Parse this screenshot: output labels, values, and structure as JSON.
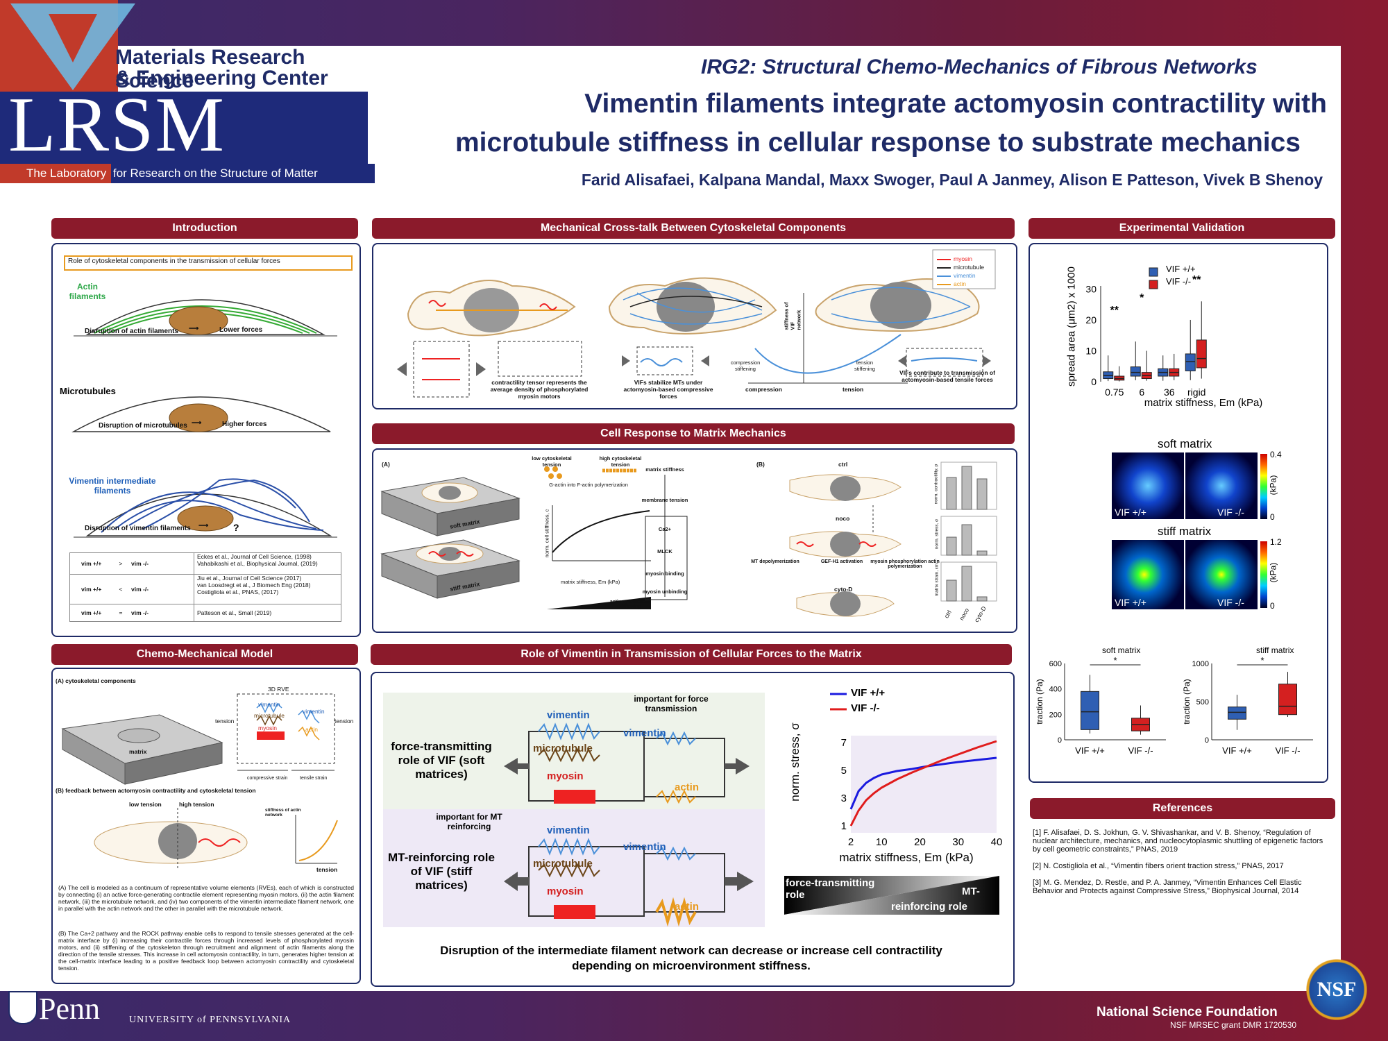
{
  "header": {
    "mrsec_line1": "Materials Research Science",
    "mrsec_line2": "& Engineering Center",
    "lrsm": "LRSM",
    "lrsm_sub_a": "The Laboratory",
    "lrsm_sub_b": "for Research on the Structure of Matter",
    "irg": "IRG2: Structural Chemo-Mechanics of Fibrous Networks",
    "title_line1": "Vimentin filaments integrate actomyosin contractility with",
    "title_line2": "microtubule stiffness in cellular response to substrate mechanics",
    "authors": "Farid Alisafaei, Kalpana Mandal, Maxx Swoger, Paul A Janmey, Alison E Patteson, Vivek B Shenoy",
    "vertical_text": "The Laboratory for Research on the Structure of Matter"
  },
  "intro": {
    "header": "Introduction",
    "role_box": "Role of cytoskeletal components in the transmission of cellular forces",
    "actin_label": "Actin filaments",
    "actin_disrupt": "Disruption of actin filaments",
    "actin_result": "Lower forces",
    "mt_label": "Microtubules",
    "mt_disrupt": "Disruption of microtubules",
    "mt_result": "Higher forces",
    "vim_label": "Vimentin intermediate filaments",
    "vim_disrupt": "Disruption of vimentin filaments",
    "vim_result": "?",
    "table": [
      {
        "left": "vim +/+",
        "op": ">",
        "right": "vim -/-",
        "refs": [
          "Eckes et al., Journal of Cell Science, (1998)",
          "Vahabikashi et al., Biophysical Journal, (2019)"
        ]
      },
      {
        "left": "vim +/+",
        "op": "<",
        "right": "vim -/-",
        "refs": [
          "Jiu et al., Journal of Cell Science (2017)",
          "van Loosdregt et al., J Biomech Eng (2018)",
          "Costigliola et al., PNAS, (2017)"
        ]
      },
      {
        "left": "vim +/+",
        "op": "=",
        "right": "vim -/-",
        "refs": [
          "Patteson et al., Small (2019)"
        ]
      }
    ]
  },
  "model": {
    "header": "Chemo-Mechanical Model",
    "a_label": "(A) cytoskeletal components",
    "rve": "3D RVE",
    "matrix": "matrix",
    "tension": "tension",
    "vimentin": "vimentin",
    "microtubule": "microtubule",
    "myosin": "myosin",
    "actin": "actin",
    "compressive": "compressive strain",
    "tensile": "tensile strain",
    "b_label": "(B) feedback between actomyosin contractility and cytoskeletal tension",
    "low_tension": "low tension",
    "high_tension": "high tension",
    "stiff_axis": "stiffness of actin network",
    "para_a": "(A) The cell is modeled as a continuum of representative volume elements (RVEs), each of which is constructed by connecting (i) an active force-generating contractile element representing myosin motors, (ii) the actin filament network, (iii) the microtubule network, and (iv) two components of the vimentin intermediate filament network, one in parallel with the actin network and the other in parallel with the microtubule network.",
    "para_b": "(B) The Ca+2 pathway and the ROCK pathway enable cells to respond to tensile stresses generated at the cell-matrix interface by (i) increasing their contractile forces through increased levels of phosphorylated myosin motors, and (ii) stiffening of the cytoskeleton through recruitment and alignment of actin filaments along the direction of the tensile stresses. This increase in cell actomyosin contractility, in turn, generates higher tension at the cell-matrix interface leading to a positive feedback loop between actomyosin contractility and cytoskeletal tension."
  },
  "crosstalk": {
    "header": "Mechanical Cross-talk Between Cytoskeletal Components",
    "legend": [
      "myosin",
      "microtubule",
      "vimentin",
      "actin"
    ],
    "contractility": "contractility tensor represents the average density of phosphorylated myosin motors",
    "vif_stabilize": "VIFs stabilize MTs under actomyosin-based compressive forces",
    "stiff_axis": "stiffness of VIF network",
    "compression_stiff": "compression stiffening",
    "tension_stiff": "tension stiffening",
    "compression": "compression",
    "tension": "tension",
    "vif_contribute": "VIFs contribute to transmission of actomyosin-based tensile forces"
  },
  "cellresp": {
    "header": "Cell Response to Matrix Mechanics",
    "a": "(A)",
    "b": "(B)",
    "soft": "soft matrix",
    "stiff": "stiff matrix",
    "low_tension": "low cytoskeletal tension",
    "high_tension": "high cytoskeletal tension",
    "g_actin": "G-actin into F-actin polymerization",
    "ylabel": "norm. cell stiffness, c",
    "xlabel": "matrix stiffness, Em (kPa)",
    "xticks": [
      "2",
      "10",
      "20",
      "30",
      "40"
    ],
    "yticks": [
      "1",
      "2",
      "3",
      "4",
      "5"
    ],
    "actin_stiff": "actin cytoskeletal stiffening",
    "flow": [
      "matrix stiffness",
      "membrane tension",
      "Ca2+",
      "MLCK",
      "myosin binding",
      "myosin unbinding"
    ],
    "ctrl": "ctrl",
    "noco": "noco",
    "cytod": "cyto-D",
    "mt_depol": "MT depolymerization",
    "gef": "GEF-H1 activation",
    "myo_phos": "myosin phosphorylation actin polymerization",
    "bar_ylabels": [
      "norm. contractility, p",
      "norm. stress, σ",
      "matrix strain, εm"
    ],
    "bar_xlabels": [
      "ctrl",
      "noco",
      "cyto-D"
    ]
  },
  "transmission": {
    "header": "Role of Vimentin in Transmission of Cellular Forces to the Matrix",
    "important_force": "important for force transmission",
    "important_mt": "important for MT reinforcing",
    "ft_role": "force-transmitting role of VIF (soft matrices)",
    "mt_role": "MT-reinforcing role of VIF (stiff matrices)",
    "vimentin": "vimentin",
    "microtubule": "microtubule",
    "myosin": "myosin",
    "actin": "actin",
    "legend_vif_pp": "VIF +/+",
    "legend_vif_mm": "VIF -/-",
    "ylabel": "norm. stress, σ",
    "xlabel": "matrix stiffness, Em (kPa)",
    "grad_left": "force-transmitting role",
    "grad_right_a": "MT-",
    "grad_right_b": "reinforcing role",
    "conclusion_1": "Disruption of the intermediate filament network can decrease or increase cell contractility",
    "conclusion_2": "depending on microenvironment stiffness."
  },
  "chart_data": [
    {
      "type": "line",
      "xlabel": "matrix stiffness, Em (kPa)",
      "ylabel": "norm. stress, σ",
      "xlim": [
        2,
        40
      ],
      "ylim": [
        0.5,
        7.5
      ],
      "xticks": [
        2,
        10,
        20,
        30,
        40
      ],
      "yticks": [
        1,
        3,
        5,
        7
      ],
      "series": [
        {
          "name": "VIF +/+",
          "color": "#1a1adf",
          "x": [
            2,
            4,
            6,
            8,
            10,
            14,
            18,
            22,
            26,
            30,
            35,
            40
          ],
          "y": [
            2.2,
            3.5,
            4.1,
            4.45,
            4.7,
            4.95,
            5.1,
            5.3,
            5.45,
            5.6,
            5.75,
            5.9
          ]
        },
        {
          "name": "VIF -/-",
          "color": "#e01c1c",
          "x": [
            2,
            4,
            6,
            8,
            10,
            14,
            18,
            22,
            26,
            30,
            35,
            40
          ],
          "y": [
            1.0,
            2.1,
            2.85,
            3.35,
            3.75,
            4.35,
            4.85,
            5.3,
            5.75,
            6.15,
            6.65,
            7.1
          ]
        }
      ]
    },
    {
      "type": "box",
      "ylabel": "spread area (μm2) x 1000",
      "xlabel": "matrix stiffness, Em (kPa)",
      "categories": [
        "0.75",
        "6",
        "36",
        "rigid"
      ],
      "series": [
        {
          "name": "VIF +/+",
          "color": "#2f5fb3",
          "boxes": [
            {
              "lo": 0.2,
              "q1": 1.0,
              "med": 2.0,
              "q3": 3.2,
              "hi": 8.5
            },
            {
              "lo": 0.5,
              "q1": 1.8,
              "med": 3.0,
              "q3": 4.8,
              "hi": 13
            },
            {
              "lo": 0.3,
              "q1": 1.8,
              "med": 3.0,
              "q3": 4.2,
              "hi": 8.5
            },
            {
              "lo": 0.5,
              "q1": 3.5,
              "med": 6.5,
              "q3": 9.0,
              "hi": 20
            }
          ]
        },
        {
          "name": "VIF -/-",
          "color": "#d42020",
          "boxes": [
            {
              "lo": 0.1,
              "q1": 0.5,
              "med": 1.0,
              "q3": 1.8,
              "hi": 5
            },
            {
              "lo": 0.3,
              "q1": 1.0,
              "med": 2.0,
              "q3": 3.0,
              "hi": 10
            },
            {
              "lo": 0.5,
              "q1": 1.8,
              "med": 3.0,
              "q3": 4.2,
              "hi": 9
            },
            {
              "lo": 1.0,
              "q1": 4.5,
              "med": 7.5,
              "q3": 13.5,
              "hi": 26
            }
          ]
        }
      ],
      "significance": [
        "**",
        "*",
        "",
        "**"
      ],
      "yticks": [
        "0",
        "10",
        "20",
        "30"
      ]
    },
    {
      "type": "box",
      "title": "soft matrix",
      "ylabel": "traction (Pa)",
      "categories": [
        "VIF +/+",
        "VIF -/-"
      ],
      "yticks": [
        "0",
        "200",
        "400",
        "600"
      ],
      "ylim": [
        0,
        600
      ],
      "boxes": [
        {
          "lo": 50,
          "q1": 80,
          "med": 220,
          "q3": 380,
          "hi": 510,
          "color": "#2f5fb3"
        },
        {
          "lo": 40,
          "q1": 70,
          "med": 120,
          "q3": 170,
          "hi": 270,
          "color": "#d42020"
        }
      ],
      "significance": "*"
    },
    {
      "type": "box",
      "title": "stiff matrix",
      "ylabel": "traction (Pa)",
      "categories": [
        "VIF +/+",
        "VIF -/-"
      ],
      "yticks": [
        "0",
        "500",
        "1000"
      ],
      "ylim": [
        0,
        1000
      ],
      "boxes": [
        {
          "lo": 130,
          "q1": 270,
          "med": 360,
          "q3": 430,
          "hi": 590,
          "color": "#2f5fb3"
        },
        {
          "lo": 300,
          "q1": 330,
          "med": 440,
          "q3": 730,
          "hi": 890,
          "color": "#d42020"
        }
      ],
      "significance": "*"
    }
  ],
  "validation": {
    "header": "Experimental Validation",
    "soft_matrix": "soft matrix",
    "stiff_matrix": "stiff matrix",
    "vif_pp": "VIF +/+",
    "vif_mm": "VIF -/-",
    "kpa": "(kPa)",
    "soft_max": "0.4",
    "stiff_max": "1.2",
    "zero": "0",
    "soft_title": "soft matrix",
    "stiff_title": "stiff matrix"
  },
  "references": {
    "header": "References",
    "items": [
      "[1] F. Alisafaei, D. S. Jokhun, G. V. Shivashankar, and V. B. Shenoy, “Regulation of nuclear architecture, mechanics, and nucleocytoplasmic shuttling of epigenetic factors by cell geometric constraints,” PNAS, 2019",
      "[2] N. Costigliola et al., “Vimentin fibers orient traction stress,” PNAS, 2017",
      "[3] M. G. Mendez, D. Restle, and P. A. Janmey, “Vimentin Enhances Cell Elastic Behavior and Protects against Compressive Stress,” Biophysical Journal, 2014"
    ]
  },
  "footer": {
    "penn": "Penn",
    "upenn": "UNIVERSITY of PENNSYLVANIA",
    "nsf": "National Science Foundation",
    "grant": "NSF MRSEC grant DMR 1720530",
    "nsf_logo": "NSF"
  }
}
